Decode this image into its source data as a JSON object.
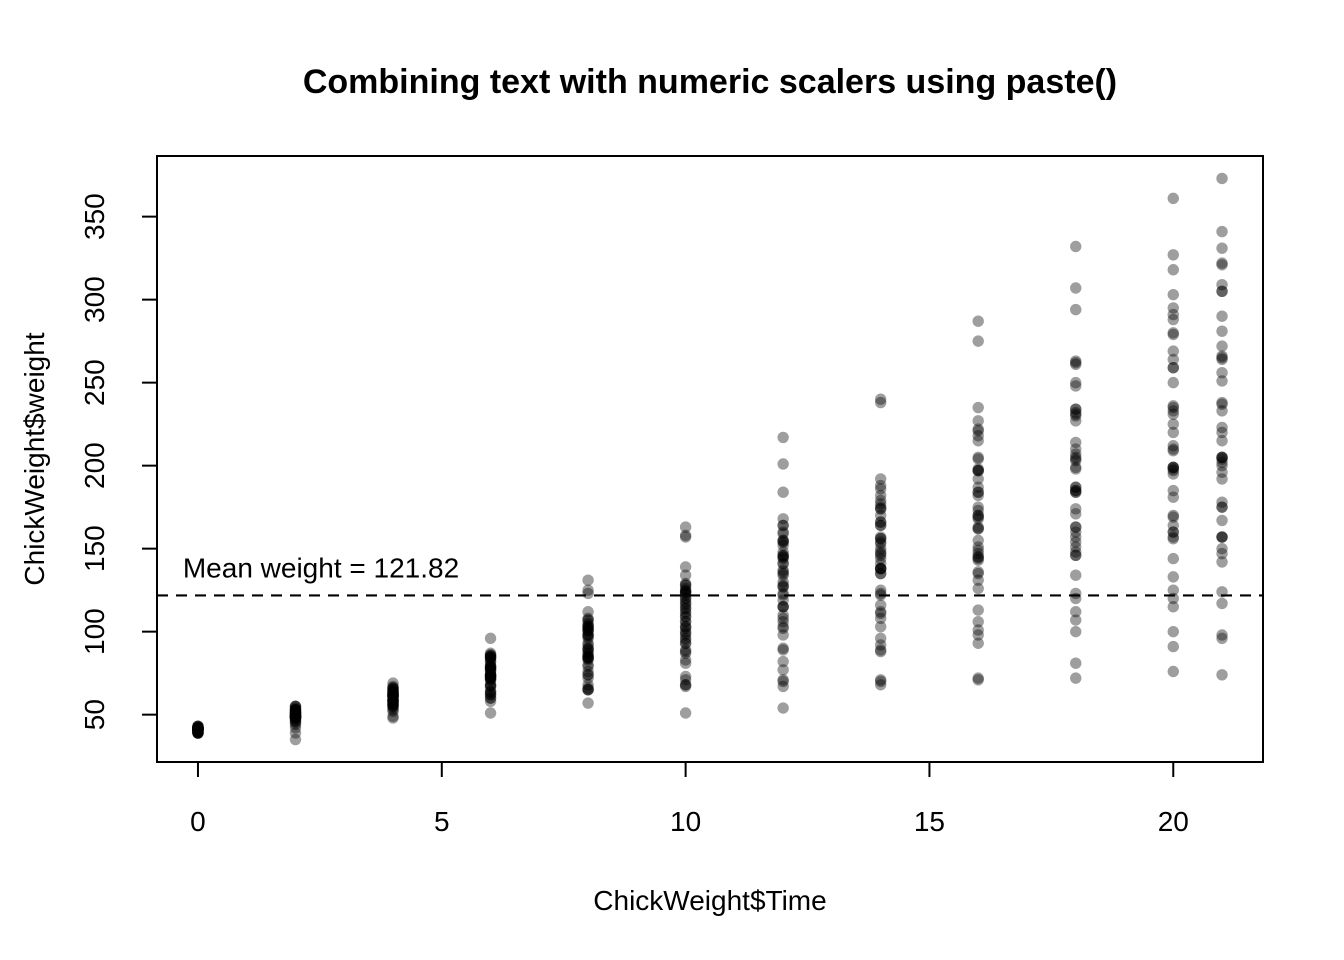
{
  "colors": {
    "background": "#ffffff",
    "axis": "#000000",
    "point": "#000000",
    "mean_line": "#000000",
    "text": "#000000"
  },
  "chart_data": {
    "type": "scatter",
    "title": "Combining text with numeric scalers using paste()",
    "xlabel": "ChickWeight$Time",
    "ylabel": "ChickWeight$weight",
    "x_ticks": [
      0,
      5,
      10,
      15,
      20
    ],
    "y_ticks": [
      50,
      100,
      150,
      200,
      250,
      300,
      350
    ],
    "xlim": [
      -0.84,
      21.84
    ],
    "ylim": [
      21.48,
      386.52
    ],
    "grid": false,
    "legend": null,
    "point_style": {
      "color": "#000000",
      "opacity": 0.38,
      "radius": 5.7
    },
    "mean_line": {
      "value": 121.82,
      "style": "dashed",
      "color": "#000000"
    },
    "annotation": {
      "text": "Mean weight = 121.82",
      "x": -0.31,
      "y": 132.5,
      "anchor": "start"
    },
    "times": [
      0,
      2,
      4,
      6,
      8,
      10,
      12,
      14,
      16,
      18,
      20,
      21
    ],
    "chicks": [
      [
        42,
        51,
        59,
        64,
        76,
        93,
        106,
        125,
        149,
        171,
        199,
        205
      ],
      [
        40,
        49,
        58,
        72,
        84,
        103,
        122,
        138,
        162,
        187,
        209,
        215
      ],
      [
        43,
        39,
        55,
        67,
        84,
        99,
        115,
        138,
        163,
        187,
        198,
        202
      ],
      [
        42,
        49,
        56,
        67,
        74,
        87,
        102,
        108,
        136,
        154,
        160,
        157
      ],
      [
        41,
        42,
        48,
        60,
        79,
        106,
        141,
        164,
        197,
        199,
        220,
        223
      ],
      [
        41,
        49,
        59,
        74,
        97,
        124,
        141,
        148,
        155,
        160,
        160,
        157
      ],
      [
        41,
        49,
        57,
        71,
        89,
        112,
        146,
        174,
        218,
        250,
        288,
        305
      ],
      [
        42,
        50,
        61,
        71,
        84,
        93,
        110,
        116,
        126,
        134,
        125
      ],
      [
        42,
        51,
        59,
        68,
        85,
        96,
        90,
        92,
        93,
        100,
        100,
        98
      ],
      [
        41,
        44,
        52,
        63,
        74,
        81,
        89,
        96,
        101,
        112,
        120,
        124
      ],
      [
        43,
        51,
        63,
        84,
        112,
        139,
        168,
        177,
        182,
        184,
        181,
        175
      ],
      [
        41,
        49,
        56,
        62,
        72,
        88,
        119,
        135,
        162,
        185,
        195,
        205
      ],
      [
        41,
        48,
        53,
        60,
        65,
        67,
        71,
        70,
        71,
        81,
        91,
        96
      ],
      [
        41,
        49,
        62,
        79,
        101,
        128,
        164,
        192,
        227,
        248,
        259,
        266
      ],
      [
        41,
        49,
        56,
        64,
        68,
        68,
        67,
        68
      ],
      [
        41,
        45,
        49,
        51,
        57,
        51,
        54
      ],
      [
        42,
        51,
        61,
        72,
        83,
        89,
        98,
        103,
        113,
        123,
        133,
        142
      ],
      [
        39,
        35
      ],
      [
        43,
        48,
        55,
        62,
        65,
        71,
        82,
        88,
        106,
        120,
        144,
        157
      ],
      [
        41,
        47,
        54,
        58,
        65,
        73,
        77,
        89,
        98,
        107,
        115,
        117
      ],
      [
        40,
        50,
        62,
        86,
        125,
        163,
        217,
        240,
        275,
        307,
        318,
        331
      ],
      [
        41,
        55,
        64,
        77,
        90,
        95,
        108,
        111,
        131,
        148,
        164,
        167
      ],
      [
        43,
        52,
        61,
        73,
        90,
        103,
        127,
        135,
        145,
        163,
        170,
        175
      ],
      [
        42,
        52,
        58,
        74,
        66,
        68,
        70,
        71,
        72,
        72,
        76,
        74
      ],
      [
        40,
        49,
        62,
        78,
        102,
        124,
        146,
        164,
        197,
        231,
        259,
        265
      ],
      [
        42,
        48,
        57,
        74,
        93,
        114,
        136,
        147,
        169,
        205,
        236,
        251
      ],
      [
        39,
        46,
        58,
        73,
        87,
        100,
        115,
        123,
        144,
        163,
        185,
        192
      ],
      [
        39,
        46,
        58,
        73,
        92,
        114,
        145,
        156,
        184,
        207,
        212,
        233
      ],
      [
        39,
        48,
        59,
        74,
        87,
        106,
        134,
        150,
        187,
        230,
        279,
        309
      ],
      [
        42,
        48,
        59,
        72,
        85,
        98,
        115,
        122,
        143,
        151,
        157,
        150
      ],
      [
        42,
        53,
        62,
        73,
        85,
        102,
        123,
        138,
        170,
        204,
        235,
        256
      ],
      [
        41,
        49,
        65,
        82,
        107,
        129,
        159,
        179,
        221,
        263,
        291,
        305
      ],
      [
        39,
        50,
        63,
        77,
        96,
        111,
        137,
        144,
        151,
        146,
        156,
        147
      ],
      [
        41,
        49,
        63,
        85,
        107,
        134,
        164,
        186,
        235,
        294,
        327,
        341
      ],
      [
        41,
        53,
        64,
        87,
        123,
        158,
        201,
        238,
        287,
        332,
        361,
        373
      ],
      [
        39,
        48,
        61,
        76,
        98,
        116,
        145,
        166,
        198,
        227,
        225,
        220
      ],
      [
        41,
        48,
        56,
        68,
        80,
        83,
        103,
        112,
        135,
        157,
        169,
        178
      ],
      [
        41,
        49,
        61,
        74,
        98,
        109,
        128,
        154,
        192,
        232,
        280,
        290
      ],
      [
        42,
        50,
        61,
        78,
        89,
        109,
        130,
        146,
        170,
        214,
        250,
        272
      ],
      [
        41,
        55,
        66,
        79,
        101,
        120,
        154,
        182,
        215,
        262,
        295,
        321
      ],
      [
        42,
        51,
        66,
        85,
        103,
        124,
        155,
        153,
        175,
        184,
        199,
        204
      ],
      [
        42,
        49,
        63,
        84,
        103,
        126,
        160,
        174,
        204,
        234,
        269,
        281
      ],
      [
        42,
        55,
        69,
        96,
        131,
        157,
        184,
        188,
        197,
        198,
        199,
        200
      ],
      [
        42,
        51,
        65,
        86,
        103,
        118,
        127,
        138,
        145,
        146
      ],
      [
        41,
        50,
        61,
        78,
        98,
        117,
        135,
        141,
        147,
        174,
        197,
        196
      ],
      [
        40,
        52,
        62,
        82,
        101,
        120,
        144,
        156,
        173,
        210,
        231,
        238
      ],
      [
        41,
        53,
        66,
        79,
        100,
        123,
        148,
        157,
        168,
        185,
        210,
        205
      ],
      [
        39,
        50,
        62,
        80,
        104,
        125,
        154,
        170,
        222,
        261,
        303,
        322
      ],
      [
        40,
        53,
        64,
        85,
        108,
        128,
        152,
        166,
        184,
        203,
        233,
        237
      ],
      [
        41,
        54,
        67,
        84,
        105,
        122,
        155,
        175,
        205,
        234,
        264,
        264
      ]
    ]
  }
}
